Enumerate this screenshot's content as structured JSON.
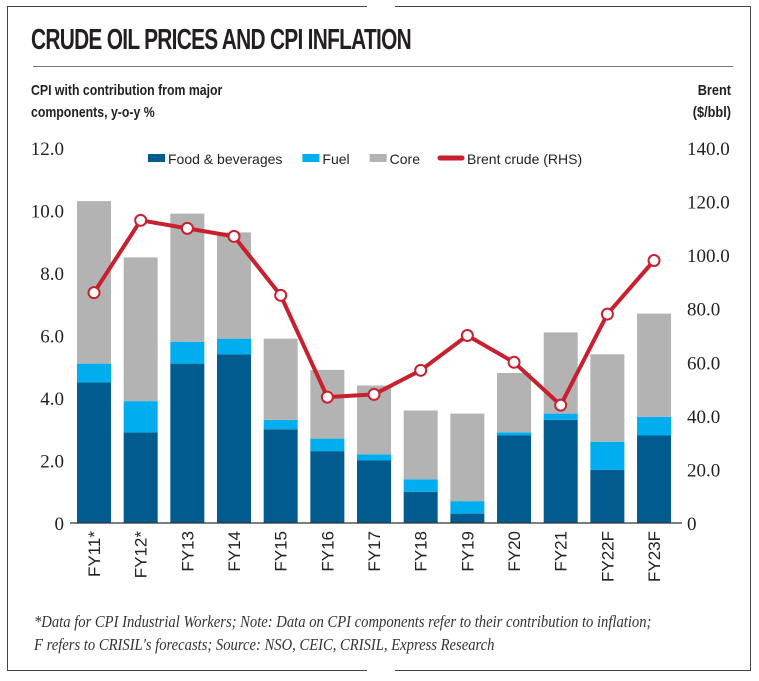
{
  "header": {
    "title": "CRUDE OIL PRICES AND CPI INFLATION",
    "left_axis_title_line1": "CPI with contribution from major",
    "left_axis_title_line2": "components, y-o-y %",
    "right_axis_title_line1": "Brent",
    "right_axis_title_line2": "($/bbl)"
  },
  "footnote": {
    "line1": "*Data for CPI Industrial Workers; Note: Data on CPI components refer to their contribution to inflation;",
    "line2": "F refers to CRISIL's forecasts; Source: NSO, CEIC, CRISIL, Express Research"
  },
  "chart_data": {
    "type": "bar",
    "stacked": true,
    "title": "CRUDE OIL PRICES AND CPI INFLATION",
    "ylabel": "CPI with contribution from major components, y-o-y %",
    "y2label": "Brent ($/bbl)",
    "categories": [
      "FY11*",
      "FY12*",
      "FY13",
      "FY14",
      "FY15",
      "FY16",
      "FY17",
      "FY18",
      "FY19",
      "FY20",
      "FY21",
      "FY22F",
      "FY23F"
    ],
    "ylim": [
      0,
      12
    ],
    "yticks": [
      "0",
      "2.0",
      "4.0",
      "6.0",
      "8.0",
      "10.0",
      "12.0"
    ],
    "y2lim": [
      0,
      140
    ],
    "y2ticks": [
      "0",
      "20.0",
      "40.0",
      "60.0",
      "80.0",
      "100.0",
      "120.0",
      "140.0"
    ],
    "grid": false,
    "legend": "top",
    "series": [
      {
        "name": "Food & beverages",
        "type": "bar",
        "color": "#005b8f",
        "values": [
          4.5,
          2.9,
          5.1,
          5.4,
          3.0,
          2.3,
          2.0,
          1.0,
          0.3,
          2.8,
          3.3,
          1.7,
          2.8
        ]
      },
      {
        "name": "Fuel",
        "type": "bar",
        "color": "#00aeef",
        "values": [
          0.6,
          1.0,
          0.7,
          0.5,
          0.3,
          0.4,
          0.2,
          0.4,
          0.4,
          0.1,
          0.2,
          0.9,
          0.6
        ]
      },
      {
        "name": "Core",
        "type": "bar",
        "color": "#b3b3b3",
        "values": [
          5.2,
          4.6,
          4.1,
          3.4,
          2.6,
          2.2,
          2.2,
          2.2,
          2.8,
          1.9,
          2.6,
          2.8,
          3.3
        ]
      },
      {
        "name": "Brent crude (RHS)",
        "type": "line",
        "axis": "right",
        "color": "#c8202f",
        "values": [
          86,
          113,
          110,
          107,
          85,
          47,
          48,
          57,
          70,
          60,
          44,
          78,
          98
        ]
      }
    ]
  }
}
